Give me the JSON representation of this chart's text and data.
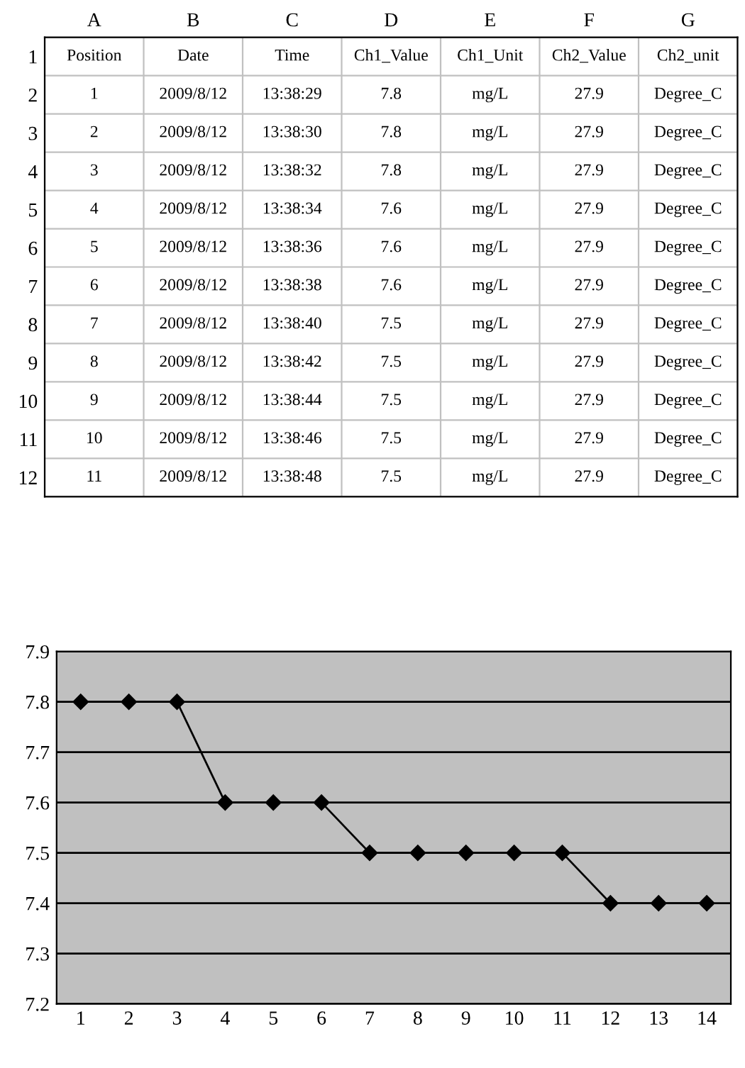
{
  "chart_data": [
    {
      "type": "heatmap",
      "categories": [
        "A",
        "B",
        "C",
        "D",
        "E",
        "F",
        "G"
      ],
      "y_categories": [
        "1",
        "2",
        "3",
        "4",
        "5",
        "6",
        "7",
        "8",
        "9",
        "10",
        "11",
        "12"
      ],
      "cells": [
        [
          null,
          null,
          null,
          null,
          null,
          null,
          null
        ],
        [
          null,
          null,
          null,
          null,
          null,
          null,
          null
        ],
        [
          null,
          null,
          null,
          null,
          null,
          null,
          null
        ],
        [
          null,
          null,
          null,
          null,
          null,
          null,
          null
        ],
        [
          null,
          null,
          null,
          null,
          null,
          null,
          null
        ],
        [
          null,
          null,
          null,
          null,
          null,
          null,
          null
        ],
        [
          null,
          null,
          null,
          null,
          null,
          null,
          null
        ],
        [
          null,
          null,
          null,
          null,
          null,
          null,
          null
        ],
        [
          null,
          null,
          null,
          null,
          null,
          null,
          null
        ],
        [
          null,
          null,
          null,
          null,
          null,
          null,
          null
        ],
        [
          null,
          null,
          null,
          null,
          null,
          null,
          null
        ],
        [
          null,
          null,
          null,
          null,
          null,
          null,
          null
        ]
      ],
      "cell_labels": [
        [
          "Position",
          "Date",
          "Time",
          "Ch1_Value",
          "Ch1_Unit",
          "Ch2_Value",
          "Ch2_unit"
        ],
        [
          "1",
          "2009/8/12",
          "13:38:29",
          "7.8",
          "mg/L",
          "27.9",
          "Degree_C"
        ],
        [
          "2",
          "2009/8/12",
          "13:38:30",
          "7.8",
          "mg/L",
          "27.9",
          "Degree_C"
        ],
        [
          "3",
          "2009/8/12",
          "13:38:32",
          "7.8",
          "mg/L",
          "27.9",
          "Degree_C"
        ],
        [
          "4",
          "2009/8/12",
          "13:38:34",
          "7.6",
          "mg/L",
          "27.9",
          "Degree_C"
        ],
        [
          "5",
          "2009/8/12",
          "13:38:36",
          "7.6",
          "mg/L",
          "27.9",
          "Degree_C"
        ],
        [
          "6",
          "2009/8/12",
          "13:38:38",
          "7.6",
          "mg/L",
          "27.9",
          "Degree_C"
        ],
        [
          "7",
          "2009/8/12",
          "13:38:40",
          "7.5",
          "mg/L",
          "27.9",
          "Degree_C"
        ],
        [
          "8",
          "2009/8/12",
          "13:38:42",
          "7.5",
          "mg/L",
          "27.9",
          "Degree_C"
        ],
        [
          "9",
          "2009/8/12",
          "13:38:44",
          "7.5",
          "mg/L",
          "27.9",
          "Degree_C"
        ],
        [
          "10",
          "2009/8/12",
          "13:38:46",
          "7.5",
          "mg/L",
          "27.9",
          "Degree_C"
        ],
        [
          "11",
          "2009/8/12",
          "13:38:48",
          "7.5",
          "mg/L",
          "27.9",
          "Degree_C"
        ]
      ]
    },
    {
      "type": "line",
      "categories": [
        "1",
        "2",
        "3",
        "4",
        "5",
        "6",
        "7",
        "8",
        "9",
        "10",
        "11",
        "12",
        "13",
        "14"
      ],
      "series": [
        {
          "color": "#000000",
          "values": [
            7.8,
            7.8,
            7.8,
            7.6,
            7.6,
            7.6,
            7.5,
            7.5,
            7.5,
            7.5,
            7.5,
            7.4,
            7.4,
            7.4
          ]
        }
      ],
      "ylim": [
        7.2,
        7.9
      ],
      "yticks": [
        7.2,
        7.3,
        7.4,
        7.5,
        7.6,
        7.7,
        7.8,
        7.9
      ],
      "grid": "y",
      "marker": "diamond",
      "line_style": "solid",
      "legend": false
    }
  ]
}
